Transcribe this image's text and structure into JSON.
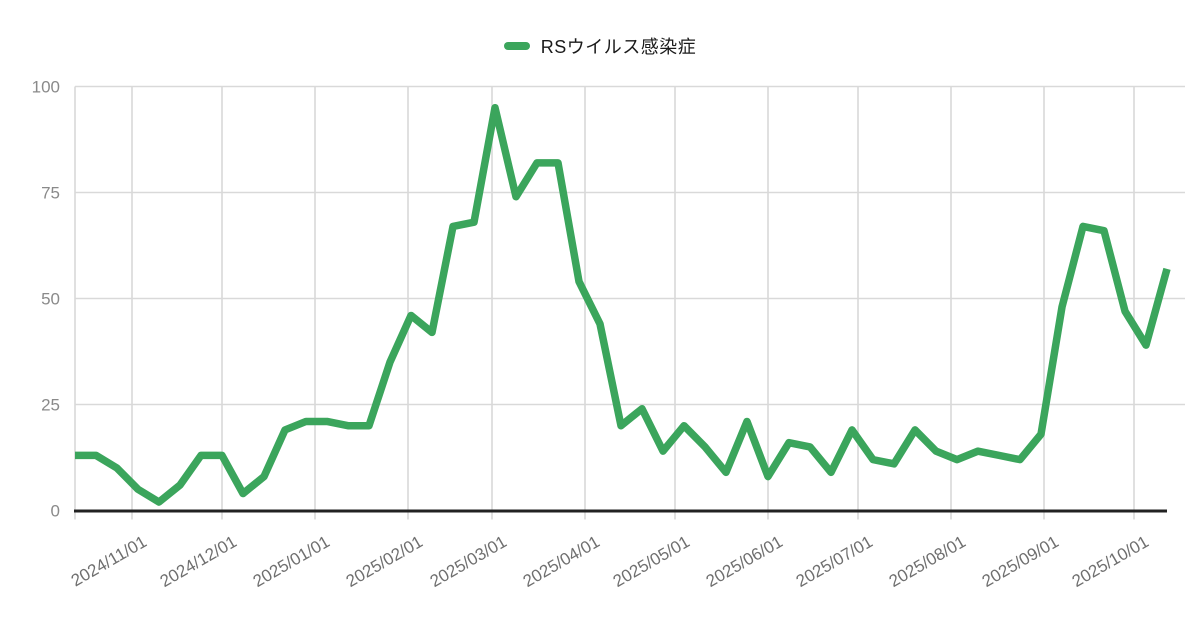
{
  "legend": {
    "label": "RSウイルス感染症"
  },
  "colors": {
    "series": "#3BA55C",
    "grid": "#d9d9d9",
    "axis": "#222222",
    "y_label": "#8a8a8a",
    "x_label": "#6f6f6f",
    "legend_text": "#1a1a1a",
    "background": "#ffffff"
  },
  "chart_data": {
    "type": "line",
    "title": "",
    "xlabel": "",
    "ylabel": "",
    "series_name": "RSウイルス感染症",
    "legend_position": "top",
    "grid": true,
    "ylim": [
      0,
      100
    ],
    "y_ticks": [
      0,
      25,
      50,
      75,
      100
    ],
    "x_tick_labels": [
      "2024/11/01",
      "2024/12/01",
      "2025/01/01",
      "2025/02/01",
      "2025/03/01",
      "2025/04/01",
      "2025/05/01",
      "2025/06/01",
      "2025/07/01",
      "2025/08/01",
      "2025/09/01",
      "2025/10/01"
    ],
    "x": [
      "2024/10/13",
      "2024/10/20",
      "2024/10/27",
      "2024/11/03",
      "2024/11/10",
      "2024/11/17",
      "2024/11/24",
      "2024/12/01",
      "2024/12/08",
      "2024/12/15",
      "2024/12/22",
      "2024/12/29",
      "2025/01/05",
      "2025/01/12",
      "2025/01/19",
      "2025/01/26",
      "2025/02/02",
      "2025/02/09",
      "2025/02/16",
      "2025/02/23",
      "2025/03/02",
      "2025/03/09",
      "2025/03/16",
      "2025/03/23",
      "2025/03/30",
      "2025/04/06",
      "2025/04/13",
      "2025/04/20",
      "2025/04/27",
      "2025/05/04",
      "2025/05/11",
      "2025/05/18",
      "2025/05/25",
      "2025/06/01",
      "2025/06/08",
      "2025/06/15",
      "2025/06/22",
      "2025/06/29",
      "2025/07/06",
      "2025/07/13",
      "2025/07/20",
      "2025/07/27",
      "2025/08/03",
      "2025/08/10",
      "2025/08/17",
      "2025/08/24",
      "2025/08/31",
      "2025/09/07",
      "2025/09/14",
      "2025/09/21",
      "2025/09/28",
      "2025/10/05",
      "2025/10/12"
    ],
    "values": [
      13,
      13,
      10,
      5,
      2,
      6,
      13,
      13,
      4,
      8,
      19,
      21,
      21,
      20,
      20,
      35,
      46,
      42,
      67,
      68,
      95,
      74,
      82,
      82,
      54,
      44,
      20,
      24,
      14,
      20,
      15,
      9,
      21,
      8,
      16,
      15,
      9,
      19,
      12,
      11,
      19,
      14,
      12,
      14,
      13,
      12,
      18,
      48,
      67,
      66,
      47,
      39,
      57
    ]
  }
}
